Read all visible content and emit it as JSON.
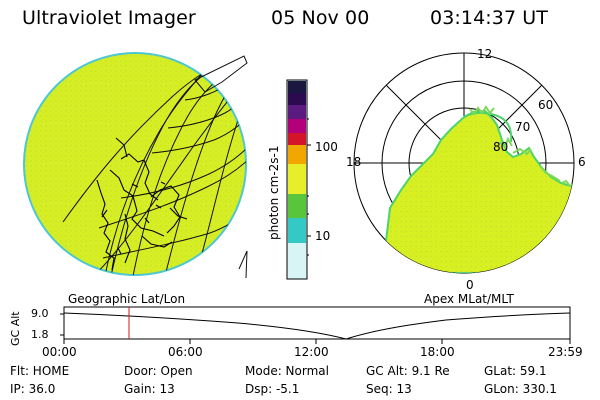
{
  "header": {
    "title": "Ultraviolet Imager",
    "date": "05 Nov 00",
    "time": "03:14:37 UT"
  },
  "colorbar": {
    "label": "photon cm-2s-1",
    "ticks": {
      "t100": "100",
      "t10": "10"
    },
    "colors": {
      "top": "#1a1740",
      "dark": "#2b0a50",
      "purple": "#5a1a80",
      "magenta": "#b3007a",
      "red": "#d4142a",
      "orange": "#f2a700",
      "yellowish": "#e7ef2a",
      "green": "#58c53a",
      "cyan": "#35c9c6",
      "light": "#d8f4f4"
    }
  },
  "left_panel": {
    "label": "Geographic Lat/Lon",
    "fill": "#d9ef24",
    "edge": "#45c9d2"
  },
  "right_panel": {
    "label": "Apex MLat/MLT",
    "labels": {
      "top": "12",
      "left": "18",
      "right": "6",
      "bottom": "0",
      "r60": "60",
      "r70": "70",
      "r80": "80"
    },
    "fill": "#d9ef24",
    "edge": "#4bd46c"
  },
  "timeline": {
    "axis_label": "GC Alt",
    "y_ticks": [
      "9.0",
      "1.8"
    ],
    "x_labels": [
      "00:00",
      "06:00",
      "12:00",
      "18:00",
      "23:59"
    ],
    "marker_color": "#d11b1b"
  },
  "status": {
    "row1": {
      "flt": "Flt: HOME",
      "door": "Door: Open",
      "mode": "Mode: Normal",
      "gc_alt": "GC Alt: 9.1 Re",
      "glat": "GLat:  59.1"
    },
    "row2": {
      "ip": "IP: 36.0",
      "gain": "Gain: 13",
      "dsp": "Dsp:     -5.1",
      "seq": "Seq: 13",
      "glon": "GLon: 330.1"
    }
  }
}
